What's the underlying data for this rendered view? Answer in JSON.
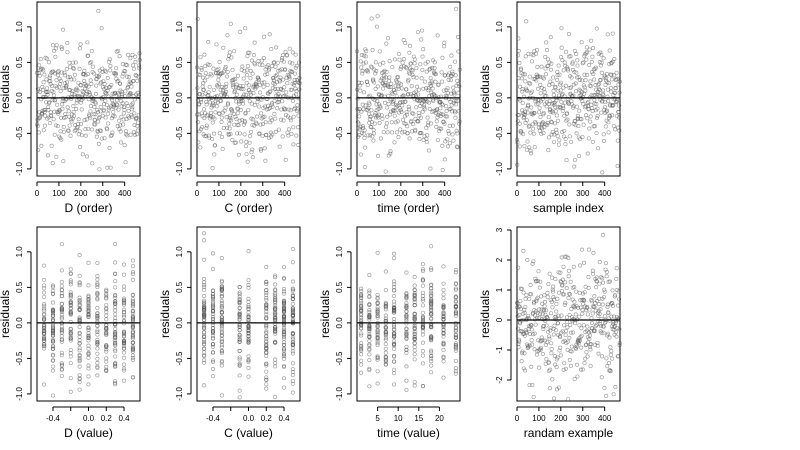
{
  "chart_data": [
    {
      "type": "scatter",
      "xlabel": "D (order)",
      "ylabel": "residuals",
      "xkind": "index",
      "xlim": [
        0,
        470
      ],
      "ylim": [
        -1.1,
        1.35
      ],
      "xticks": [
        0,
        100,
        200,
        300,
        400
      ],
      "yticks": [
        -1.0,
        -0.5,
        0.0,
        0.5,
        1.0
      ],
      "ytick_labels": [
        "-1.0",
        "-0.5",
        "0.0",
        "0.5",
        "1.0"
      ],
      "reference_line_y": 0
    },
    {
      "type": "scatter",
      "xlabel": "C (order)",
      "ylabel": "residuals",
      "xkind": "index",
      "xlim": [
        0,
        470
      ],
      "ylim": [
        -1.1,
        1.35
      ],
      "xticks": [
        0,
        100,
        200,
        300,
        400
      ],
      "yticks": [
        -1.0,
        -0.5,
        0.0,
        0.5,
        1.0
      ],
      "ytick_labels": [
        "-1.0",
        "-0.5",
        "0.0",
        "0.5",
        "1.0"
      ],
      "reference_line_y": 0
    },
    {
      "type": "scatter",
      "xlabel": "time (order)",
      "ylabel": "residuals",
      "xkind": "index",
      "xlim": [
        0,
        470
      ],
      "ylim": [
        -1.1,
        1.35
      ],
      "xticks": [
        0,
        100,
        200,
        300,
        400
      ],
      "yticks": [
        -1.0,
        -0.5,
        0.0,
        0.5,
        1.0
      ],
      "ytick_labels": [
        "-1.0",
        "-0.5",
        "0.0",
        "0.5",
        "1.0"
      ],
      "reference_line_y": 0
    },
    {
      "type": "scatter",
      "xlabel": "sample index",
      "ylabel": "residuals",
      "xkind": "index",
      "xlim": [
        0,
        470
      ],
      "ylim": [
        -1.1,
        1.35
      ],
      "xticks": [
        0,
        100,
        200,
        300,
        400
      ],
      "yticks": [
        -1.0,
        -0.5,
        0.0,
        0.5,
        1.0
      ],
      "ytick_labels": [
        "-1.0",
        "-0.5",
        "0.0",
        "0.5",
        "1.0"
      ],
      "reference_line_y": 0
    },
    {
      "type": "scatter",
      "xlabel": "D (value)",
      "ylabel": "residuals",
      "xkind": "discrete",
      "levels": [
        -0.5,
        -0.4,
        -0.3,
        -0.2,
        -0.1,
        0.0,
        0.1,
        0.2,
        0.3,
        0.4,
        0.5
      ],
      "xlim": [
        -0.58,
        0.58
      ],
      "ylim": [
        -1.1,
        1.35
      ],
      "xticks": [
        -0.4,
        -0.2,
        0.0,
        0.2,
        0.4
      ],
      "xtick_labels": [
        "-0.4",
        "0.0",
        "0.2",
        "0.4"
      ],
      "xtick_label_values": [
        -0.4,
        0.0,
        0.2,
        0.4
      ],
      "yticks": [
        -1.0,
        -0.5,
        0.0,
        0.5,
        1.0
      ],
      "ytick_labels": [
        "-1.0",
        "-0.5",
        "0.0",
        "0.5",
        "1.0"
      ],
      "reference_line_y": 0
    },
    {
      "type": "scatter",
      "xlabel": "C (value)",
      "ylabel": "residuals",
      "xkind": "discrete",
      "levels": [
        -0.5,
        -0.4,
        -0.3,
        -0.1,
        0.0,
        0.2,
        0.3,
        0.4,
        0.5
      ],
      "xlim": [
        -0.58,
        0.58
      ],
      "ylim": [
        -1.1,
        1.35
      ],
      "xticks": [
        -0.4,
        -0.2,
        0.0,
        0.2,
        0.4
      ],
      "xtick_labels": [
        "-0.4",
        "0.0",
        "0.2",
        "0.4"
      ],
      "xtick_label_values": [
        -0.4,
        0.0,
        0.2,
        0.4
      ],
      "yticks": [
        -1.0,
        -0.5,
        0.0,
        0.5,
        1.0
      ],
      "ytick_labels": [
        "-1.0",
        "-0.5",
        "0.0",
        "0.5",
        "1.0"
      ],
      "reference_line_y": 0
    },
    {
      "type": "scatter",
      "xlabel": "time (value)",
      "ylabel": "residuals",
      "xkind": "discrete",
      "levels": [
        1,
        3,
        5,
        7,
        9,
        12,
        14,
        16,
        18,
        21,
        24
      ],
      "xlim": [
        0,
        25
      ],
      "ylim": [
        -1.1,
        1.35
      ],
      "xticks": [
        5,
        10,
        15,
        20
      ],
      "yticks": [
        -1.0,
        -0.5,
        0.0,
        0.5,
        1.0
      ],
      "ytick_labels": [
        "-1.0",
        "-0.5",
        "0.0",
        "0.5",
        "1.0"
      ],
      "reference_line_y": 0
    },
    {
      "type": "scatter",
      "xlabel": "randam example",
      "ylabel": "residuals",
      "xkind": "index",
      "xlim": [
        0,
        470
      ],
      "ylim": [
        -2.7,
        3.1
      ],
      "xticks": [
        0,
        100,
        200,
        300,
        400
      ],
      "yticks": [
        -2,
        -1,
        0,
        1,
        2,
        3
      ],
      "ytick_labels": [
        "-2",
        "-1",
        "0",
        "1",
        "2",
        "3"
      ],
      "reference_line_y": 0
    }
  ]
}
